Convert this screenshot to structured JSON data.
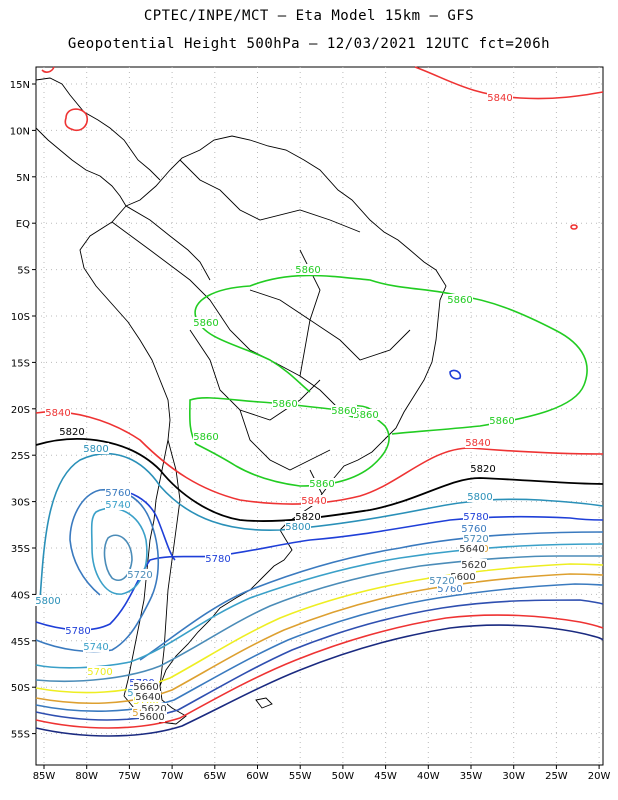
{
  "header": {
    "title_line1": "CPTEC/INPE/MCT  –   Eta Model 15km  –  GFS",
    "title_line2": "Geopotential Height 500hPa  –  12/03/2021 12UTC fct=206h"
  },
  "map": {
    "lon_ticks": [
      "85W",
      "80W",
      "75W",
      "70W",
      "65W",
      "60W",
      "55W",
      "50W",
      "45W",
      "40W",
      "35W",
      "30W",
      "25W",
      "20W"
    ],
    "lat_ticks": [
      "15N",
      "10N",
      "5N",
      "EQ",
      "5S",
      "10S",
      "15S",
      "20S",
      "25S",
      "30S",
      "35S",
      "40S",
      "45S",
      "50S",
      "55S"
    ]
  },
  "contours": {
    "colors": {
      "5860": "#22cc22",
      "5840": "#ee3333",
      "5820": "#000000",
      "5800": "#2a90b8",
      "5780": "#1f3fd8",
      "5760": "#3a7abf",
      "5740": "#3aa0c8",
      "5720": "#4b8cb8",
      "5700": "#eeee22",
      "5680": "#dda030"
    },
    "labels": [
      {
        "text": "5840",
        "level": "5840"
      },
      {
        "text": "5860",
        "level": "5860"
      },
      {
        "text": "5860",
        "level": "5860"
      },
      {
        "text": "5860",
        "level": "5860"
      },
      {
        "text": "5860",
        "level": "5860"
      },
      {
        "text": "5860",
        "level": "5860"
      },
      {
        "text": "5860",
        "level": "5860"
      },
      {
        "text": "5860",
        "level": "5860"
      },
      {
        "text": "5860",
        "level": "5860"
      },
      {
        "text": "5860",
        "level": "5860"
      },
      {
        "text": "5840",
        "level": "5840"
      },
      {
        "text": "5840",
        "level": "5840"
      },
      {
        "text": "5840",
        "level": "5840"
      },
      {
        "text": "5820",
        "level": "5820"
      },
      {
        "text": "5820",
        "level": "5820"
      },
      {
        "text": "5820",
        "level": "5820"
      },
      {
        "text": "5800",
        "level": "5800"
      },
      {
        "text": "5800",
        "level": "5800"
      },
      {
        "text": "5800",
        "level": "5800"
      },
      {
        "text": "5800",
        "level": "5800"
      },
      {
        "text": "5760",
        "level": "5760"
      },
      {
        "text": "5740",
        "level": "5740"
      },
      {
        "text": "5720",
        "level": "5720"
      },
      {
        "text": "5780",
        "level": "5780"
      },
      {
        "text": "5780",
        "level": "5780"
      },
      {
        "text": "5780",
        "level": "5780"
      },
      {
        "text": "5760",
        "level": "5760"
      },
      {
        "text": "5740",
        "level": "5740"
      },
      {
        "text": "5720",
        "level": "5720"
      },
      {
        "text": "5700",
        "level": "5700"
      },
      {
        "text": "5680",
        "level": "5680"
      },
      {
        "text": "5640",
        "level": "5640"
      },
      {
        "text": "5620",
        "level": "5620"
      },
      {
        "text": "5600",
        "level": "5600"
      },
      {
        "text": "5780",
        "level": "5780"
      },
      {
        "text": "5760",
        "level": "5760"
      },
      {
        "text": "5740",
        "level": "5740"
      },
      {
        "text": "5720",
        "level": "5720"
      },
      {
        "text": "5700",
        "level": "5700"
      },
      {
        "text": "5680",
        "level": "5680"
      },
      {
        "text": "5660",
        "level": "5660"
      },
      {
        "text": "5640",
        "level": "5640"
      },
      {
        "text": "5620",
        "level": "5620"
      },
      {
        "text": "5600",
        "level": "5600"
      }
    ]
  }
}
